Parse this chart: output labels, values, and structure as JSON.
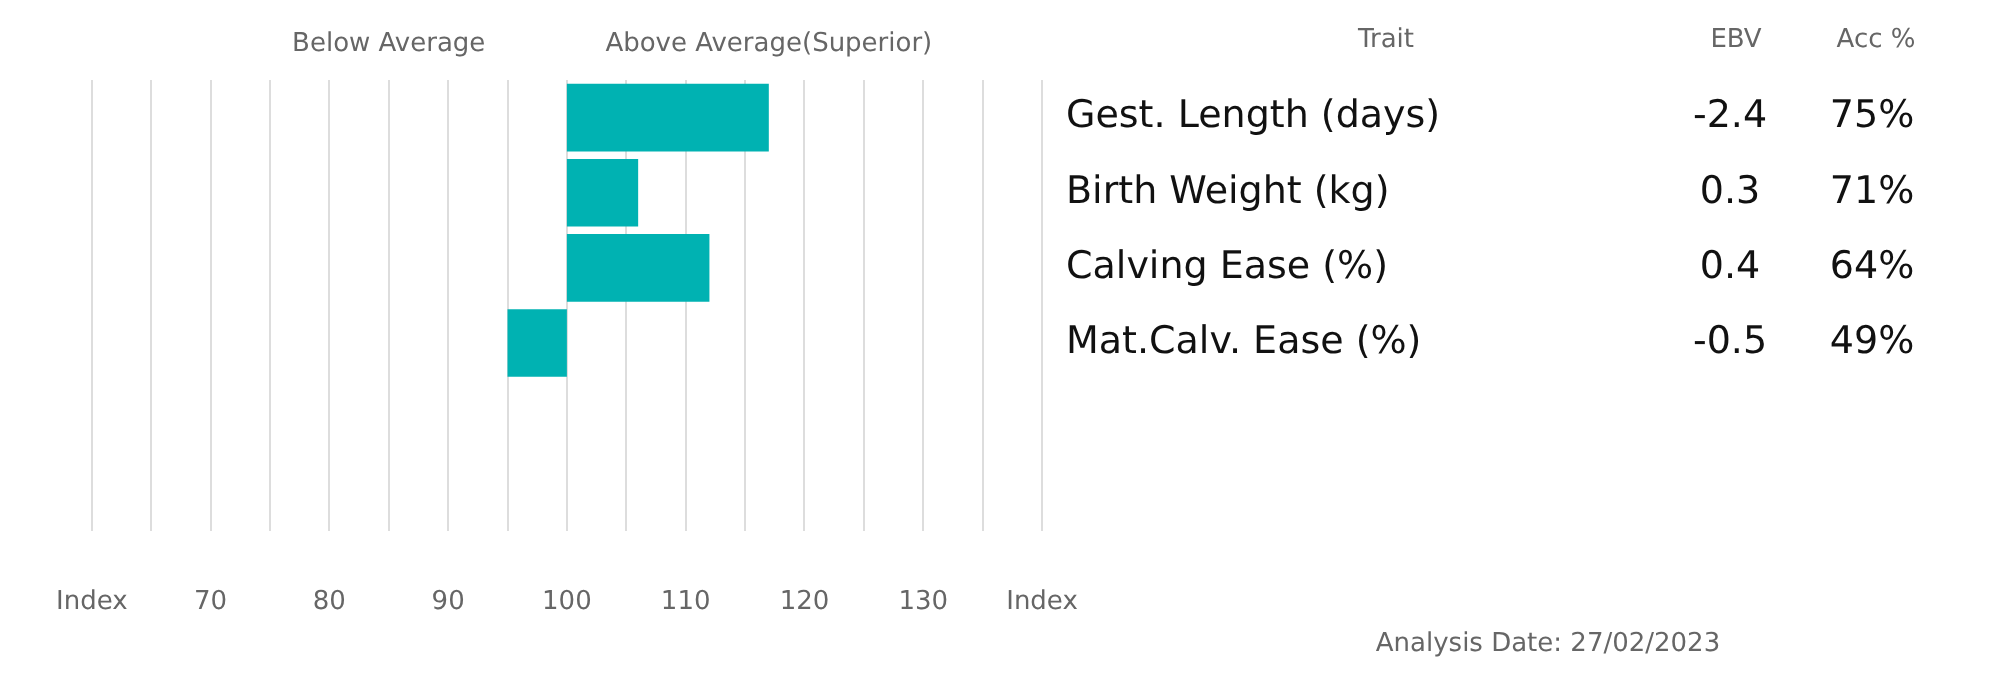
{
  "chart_data": {
    "type": "bar",
    "orientation": "horizontal",
    "ylabel": "Trait",
    "categories": [
      "Gest. Length (days)",
      "Birth Weight (kg)",
      "Calving Ease (%)",
      "Mat.Calv. Ease (%)",
      null,
      null
    ],
    "base": [
      100,
      100,
      100,
      100,
      null,
      null
    ],
    "values": [
      17,
      6,
      12,
      -5,
      null,
      null
    ],
    "color": "#00b2b2",
    "xlim": [
      60,
      140
    ],
    "xticks": [
      {
        "value": 60,
        "label": "Index"
      },
      {
        "value": 65,
        "label": null
      },
      70,
      {
        "value": 75,
        "label": null
      },
      80,
      {
        "value": 85,
        "label": null
      },
      90,
      {
        "value": 95,
        "label": null
      },
      100,
      {
        "value": 105,
        "label": null
      },
      110,
      {
        "value": 115,
        "label": null
      },
      120,
      {
        "value": 125,
        "label": null
      },
      130,
      {
        "value": 135,
        "label": null
      },
      {
        "value": 140,
        "label": "Index"
      }
    ],
    "grid": "x",
    "legend": false,
    "annotations": [
      "Below Average",
      "Above Average(Superior)",
      "EBV",
      "Acc %",
      "-2.4",
      "75%",
      "0.3",
      "71%",
      "0.4",
      "64%",
      "-0.5",
      "49%",
      "Analysis Date: 27/02/2023"
    ]
  }
}
